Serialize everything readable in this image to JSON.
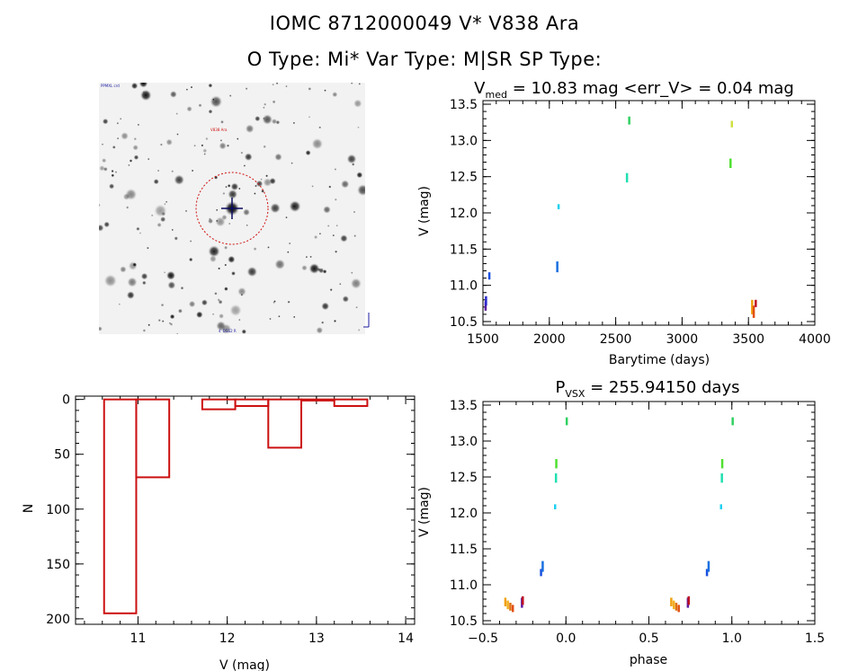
{
  "header": {
    "line1": "IOMC 8712000049    V* V838 Ara",
    "line2": "O Type: Mi*  Var Type: M|SR  SP Type:"
  },
  "finder": {
    "label_topleft": "PPMXL crd",
    "label_target": "V838 Ara",
    "label_bottom": "4' DSS2 R",
    "colors": {
      "circle": "#d01010",
      "cross": "#0a0a60"
    }
  },
  "chart_data": [
    {
      "type": "scatter",
      "id": "lightcurve",
      "title": "V_med = 10.83 mag <err_V> = 0.04 mag",
      "title_parts": {
        "main": "V",
        "sub": "med",
        "rest": " = 10.83 mag <err_V> = 0.04 mag"
      },
      "xlabel": "Barytime (days)",
      "ylabel": "V (mag)",
      "xlim": [
        1500,
        4000
      ],
      "ylim": [
        13.55,
        10.45
      ],
      "xticks": [
        1500,
        2000,
        2500,
        3000,
        3500,
        4000
      ],
      "yticks": [
        10.5,
        11.0,
        11.5,
        12.0,
        12.5,
        13.0,
        13.5
      ],
      "ytick_labels": [
        "10.5",
        "11.0",
        "11.5",
        "12.0",
        "12.5",
        "13.0",
        "13.5"
      ],
      "points": [
        {
          "x": 1520,
          "y1": 10.65,
          "y2": 10.78,
          "color": "#5a1aa0"
        },
        {
          "x": 1523,
          "y1": 10.72,
          "y2": 10.85,
          "color": "#2a2ad0"
        },
        {
          "x": 1548,
          "y1": 11.08,
          "y2": 11.18,
          "color": "#1a50e0"
        },
        {
          "x": 2060,
          "y1": 11.18,
          "y2": 11.33,
          "color": "#1a70e0"
        },
        {
          "x": 2070,
          "y1": 12.05,
          "y2": 12.12,
          "color": "#20d0f0"
        },
        {
          "x": 2585,
          "y1": 12.42,
          "y2": 12.55,
          "color": "#20e0b0"
        },
        {
          "x": 2602,
          "y1": 13.22,
          "y2": 13.33,
          "color": "#30d060"
        },
        {
          "x": 3365,
          "y1": 12.62,
          "y2": 12.75,
          "color": "#50e030"
        },
        {
          "x": 3375,
          "y1": 13.18,
          "y2": 13.27,
          "color": "#d0e040"
        },
        {
          "x": 3528,
          "y1": 10.6,
          "y2": 10.8,
          "color": "#f0a010"
        },
        {
          "x": 3540,
          "y1": 10.55,
          "y2": 10.72,
          "color": "#e05010"
        },
        {
          "x": 3555,
          "y1": 10.7,
          "y2": 10.8,
          "color": "#c01020"
        }
      ]
    },
    {
      "type": "bar",
      "id": "histogram",
      "title": "",
      "xlabel": "V (mag)",
      "ylabel": "N",
      "xlim": [
        10.3,
        14.1
      ],
      "ylim": [
        -3,
        205
      ],
      "xticks": [
        11,
        12,
        13,
        14
      ],
      "yticks": [
        0,
        50,
        100,
        150,
        200
      ],
      "bin_edges": [
        10.62,
        10.98,
        11.35,
        11.72,
        12.09,
        12.46,
        12.83,
        13.2,
        13.57
      ],
      "counts": [
        195,
        71,
        0,
        9,
        6,
        44,
        1,
        6
      ],
      "color": "#cc1111"
    },
    {
      "type": "scatter",
      "id": "phased",
      "title": "P_vsx = 255.94150 days",
      "title_parts": {
        "main": "P",
        "sub": "VSX",
        "rest": " = 255.94150 days"
      },
      "xlabel": "phase",
      "ylabel": "V (mag)",
      "xlim": [
        -0.5,
        1.5
      ],
      "ylim": [
        13.55,
        10.45
      ],
      "xticks": [
        -0.5,
        0.0,
        0.5,
        1.0,
        1.5
      ],
      "xtick_labels": [
        "−0.5",
        "0.0",
        "0.5",
        "1.0",
        "1.5"
      ],
      "yticks": [
        10.5,
        11.0,
        11.5,
        12.0,
        12.5,
        13.0,
        13.5
      ],
      "ytick_labels": [
        "10.5",
        "11.0",
        "11.5",
        "12.0",
        "12.5",
        "13.0",
        "13.5"
      ],
      "points": [
        {
          "x": -0.365,
          "y1": 10.7,
          "y2": 10.82,
          "color": "#f0a010"
        },
        {
          "x": -0.35,
          "y1": 10.66,
          "y2": 10.78,
          "color": "#f0b020"
        },
        {
          "x": -0.335,
          "y1": 10.64,
          "y2": 10.75,
          "color": "#e07010"
        },
        {
          "x": -0.32,
          "y1": 10.62,
          "y2": 10.72,
          "color": "#e05010"
        },
        {
          "x": -0.265,
          "y1": 10.68,
          "y2": 10.82,
          "color": "#5a1aa0"
        },
        {
          "x": -0.26,
          "y1": 10.72,
          "y2": 10.84,
          "color": "#c01020"
        },
        {
          "x": -0.15,
          "y1": 11.12,
          "y2": 11.22,
          "color": "#1a50e0"
        },
        {
          "x": -0.14,
          "y1": 11.18,
          "y2": 11.33,
          "color": "#1a70e0"
        },
        {
          "x": -0.065,
          "y1": 12.05,
          "y2": 12.12,
          "color": "#20d0f0"
        },
        {
          "x": -0.06,
          "y1": 12.42,
          "y2": 12.55,
          "color": "#20e0b0"
        },
        {
          "x": -0.058,
          "y1": 12.62,
          "y2": 12.75,
          "color": "#50e030"
        },
        {
          "x": 0.005,
          "y1": 13.22,
          "y2": 13.33,
          "color": "#30d060"
        },
        {
          "x": 0.635,
          "y1": 10.7,
          "y2": 10.82,
          "color": "#f0a010"
        },
        {
          "x": 0.65,
          "y1": 10.66,
          "y2": 10.78,
          "color": "#f0b020"
        },
        {
          "x": 0.665,
          "y1": 10.64,
          "y2": 10.75,
          "color": "#e07010"
        },
        {
          "x": 0.68,
          "y1": 10.62,
          "y2": 10.72,
          "color": "#e05010"
        },
        {
          "x": 0.735,
          "y1": 10.68,
          "y2": 10.82,
          "color": "#5a1aa0"
        },
        {
          "x": 0.74,
          "y1": 10.72,
          "y2": 10.84,
          "color": "#c01020"
        },
        {
          "x": 0.85,
          "y1": 11.12,
          "y2": 11.22,
          "color": "#1a50e0"
        },
        {
          "x": 0.86,
          "y1": 11.18,
          "y2": 11.33,
          "color": "#1a70e0"
        },
        {
          "x": 0.935,
          "y1": 12.05,
          "y2": 12.12,
          "color": "#20d0f0"
        },
        {
          "x": 0.94,
          "y1": 12.42,
          "y2": 12.55,
          "color": "#20e0b0"
        },
        {
          "x": 0.942,
          "y1": 12.62,
          "y2": 12.75,
          "color": "#50e030"
        },
        {
          "x": 1.005,
          "y1": 13.22,
          "y2": 13.33,
          "color": "#30d060"
        }
      ]
    }
  ]
}
